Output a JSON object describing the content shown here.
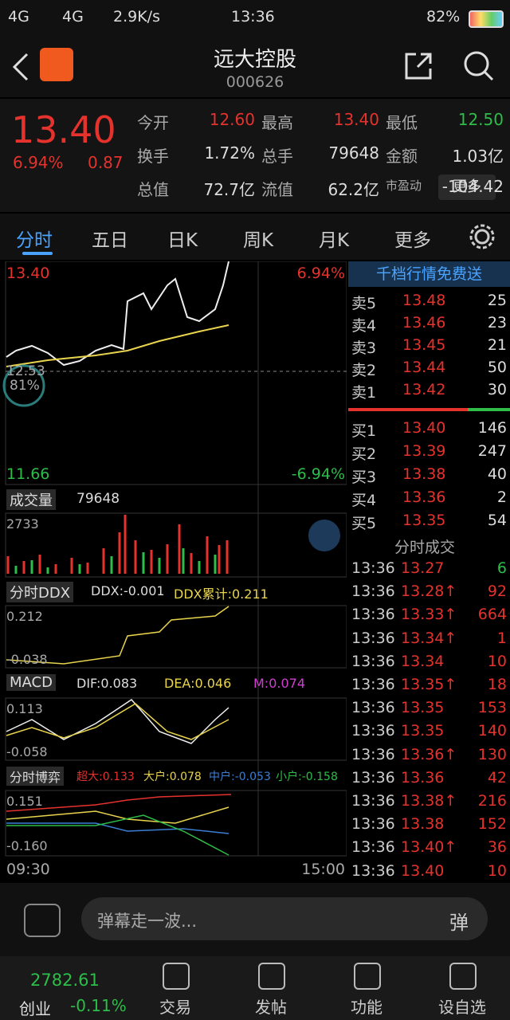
{
  "status": {
    "net1": "4G",
    "net2": "4G",
    "speed": "2.9K/s",
    "time": "13:36",
    "battery": "82%"
  },
  "header": {
    "title": "远大控股",
    "code": "000626"
  },
  "quote": {
    "price": "13.40",
    "change_pct": "6.94%",
    "change": "0.87",
    "more": "更多",
    "fields": [
      {
        "label": "今开",
        "value": "12.60",
        "color": "#e5322d"
      },
      {
        "label": "最高",
        "value": "13.40",
        "color": "#e5322d"
      },
      {
        "label": "最低",
        "value": "12.50",
        "color": "#2dbd48"
      },
      {
        "label": "换手",
        "value": "1.72%",
        "color": "#ddd"
      },
      {
        "label": "总手",
        "value": "79648",
        "color": "#ddd"
      },
      {
        "label": "金额",
        "value": "1.03亿",
        "color": "#ddd"
      },
      {
        "label": "总值",
        "value": "72.7亿",
        "color": "#ddd"
      },
      {
        "label": "流值",
        "value": "62.2亿",
        "color": "#ddd"
      },
      {
        "label": "市盈动",
        "value": "-104.42",
        "color": "#ddd"
      }
    ]
  },
  "tabs": [
    "分时",
    "五日",
    "日K",
    "周K",
    "月K",
    "更多"
  ],
  "chart": {
    "price_high": "13.40",
    "pct_high": "6.94%",
    "mid_price": "12.53",
    "circle_pct": "81%",
    "price_low": "11.66",
    "pct_low": "-6.94%",
    "volume": {
      "label": "成交量",
      "total": "79648",
      "max": "2733"
    },
    "ddx": {
      "label": "分时DDX",
      "ddx": "DDX:-0.001",
      "cum": "DDX累计:0.211",
      "top": "0.212",
      "bottom": "-0.038"
    },
    "macd": {
      "label": "MACD",
      "dif": "DIF:0.083",
      "dea": "DEA:0.046",
      "m": "M:0.074",
      "top": "0.113",
      "bottom": "-0.058"
    },
    "game": {
      "label": "分时博弈",
      "super": "超大:0.133",
      "big": "大户:0.078",
      "mid": "中户:-0.053",
      "small": "小户:-0.158",
      "top": "0.151",
      "bottom": "-0.160"
    },
    "time_start": "09:30",
    "time_end": "15:00"
  },
  "order_book": {
    "promo": "千档行情免费送",
    "asks": [
      [
        "卖5",
        "13.48",
        "25"
      ],
      [
        "卖4",
        "13.46",
        "23"
      ],
      [
        "卖3",
        "13.45",
        "21"
      ],
      [
        "卖2",
        "13.44",
        "50"
      ],
      [
        "卖1",
        "13.42",
        "30"
      ]
    ],
    "bids": [
      [
        "买1",
        "13.40",
        "146"
      ],
      [
        "买2",
        "13.39",
        "247"
      ],
      [
        "买3",
        "13.38",
        "40"
      ],
      [
        "买4",
        "13.36",
        "2"
      ],
      [
        "买5",
        "13.35",
        "54"
      ]
    ]
  },
  "trades": {
    "title": "分时成交",
    "rows": [
      {
        "time": "13:36",
        "price": "13.27",
        "vol": "6",
        "color": "#2dbd48"
      },
      {
        "time": "13:36",
        "price": "13.28↑",
        "vol": "92",
        "color": "#e5322d"
      },
      {
        "time": "13:36",
        "price": "13.33↑",
        "vol": "664",
        "color": "#e5322d"
      },
      {
        "time": "13:36",
        "price": "13.34↑",
        "vol": "1",
        "color": "#e5322d"
      },
      {
        "time": "13:36",
        "price": "13.34",
        "vol": "10",
        "color": "#e5322d"
      },
      {
        "time": "13:36",
        "price": "13.35↑",
        "vol": "18",
        "color": "#e5322d"
      },
      {
        "time": "13:36",
        "price": "13.35",
        "vol": "153",
        "color": "#e5322d"
      },
      {
        "time": "13:36",
        "price": "13.35",
        "vol": "140",
        "color": "#e5322d"
      },
      {
        "time": "13:36",
        "price": "13.36↑",
        "vol": "130",
        "color": "#e5322d"
      },
      {
        "time": "13:36",
        "price": "13.36",
        "vol": "42",
        "color": "#e5322d"
      },
      {
        "time": "13:36",
        "price": "13.38↑",
        "vol": "216",
        "color": "#e5322d"
      },
      {
        "time": "13:36",
        "price": "13.38",
        "vol": "152",
        "color": "#e5322d"
      },
      {
        "time": "13:36",
        "price": "13.40↑",
        "vol": "36",
        "color": "#e5322d"
      },
      {
        "time": "13:36",
        "price": "13.40",
        "vol": "10",
        "color": "#e5322d"
      }
    ]
  },
  "comment": {
    "placeholder": "弹幕走一波...",
    "button": "弹"
  },
  "nav": {
    "index_value": "2782.61",
    "index_name": "创业",
    "index_change": "-0.11%",
    "items": [
      "交易",
      "发帖",
      "功能",
      "设自选"
    ]
  }
}
